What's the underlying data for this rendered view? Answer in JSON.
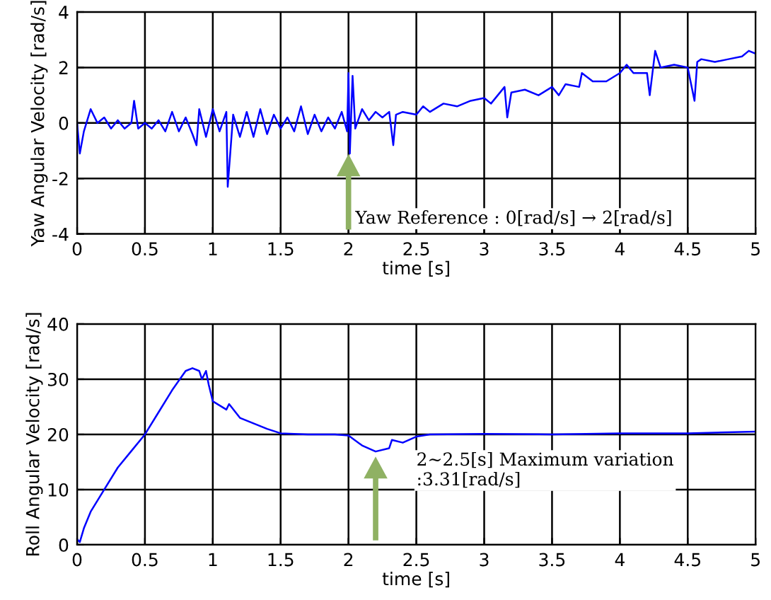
{
  "chart_data": [
    {
      "type": "line",
      "xlabel": "time [s]",
      "ylabel": "Yaw Angular Velocity [rad/s]",
      "xlim": [
        0,
        5
      ],
      "ylim": [
        -4,
        4
      ],
      "xticks": [
        0,
        0.5,
        1,
        1.5,
        2,
        2.5,
        3,
        3.5,
        4,
        4.5,
        5
      ],
      "yticks": [
        -4,
        -2,
        0,
        2,
        4
      ],
      "grid": true,
      "annotations": [
        "Yaw Reference : 0[rad/s] → 2[rad/s]"
      ],
      "series": [
        {
          "color": "#0000ff",
          "x": [
            0,
            0.02,
            0.05,
            0.1,
            0.15,
            0.2,
            0.25,
            0.3,
            0.35,
            0.4,
            0.42,
            0.45,
            0.5,
            0.55,
            0.6,
            0.65,
            0.7,
            0.75,
            0.8,
            0.85,
            0.88,
            0.9,
            0.95,
            1.0,
            1.05,
            1.1,
            1.11,
            1.15,
            1.2,
            1.25,
            1.3,
            1.35,
            1.4,
            1.45,
            1.5,
            1.55,
            1.6,
            1.65,
            1.7,
            1.75,
            1.8,
            1.85,
            1.9,
            1.95,
            1.99,
            2.0,
            2.01,
            2.03,
            2.05,
            2.1,
            2.15,
            2.2,
            2.25,
            2.3,
            2.33,
            2.35,
            2.4,
            2.5,
            2.55,
            2.6,
            2.7,
            2.8,
            2.9,
            3.0,
            3.05,
            3.1,
            3.15,
            3.17,
            3.2,
            3.3,
            3.4,
            3.5,
            3.55,
            3.6,
            3.7,
            3.72,
            3.8,
            3.9,
            4.0,
            4.05,
            4.1,
            4.2,
            4.22,
            4.26,
            4.3,
            4.4,
            4.5,
            4.55,
            4.57,
            4.6,
            4.7,
            4.8,
            4.9,
            4.95,
            5.0
          ],
          "values": [
            0,
            -1.1,
            -0.3,
            0.5,
            0,
            0.2,
            -0.2,
            0.1,
            -0.2,
            0,
            0.8,
            -0.2,
            0,
            -0.2,
            0.1,
            -0.3,
            0.4,
            -0.3,
            0.2,
            -0.4,
            -0.8,
            0.5,
            -0.5,
            0.5,
            -0.3,
            0.4,
            -2.3,
            0.3,
            -0.5,
            0.4,
            -0.5,
            0.5,
            -0.4,
            0.3,
            -0.2,
            0.2,
            -0.3,
            0.6,
            -0.4,
            0.3,
            -0.3,
            0.2,
            -0.2,
            0.4,
            -0.3,
            1.8,
            -1.1,
            1.7,
            -0.2,
            0.5,
            0.1,
            0.4,
            0.2,
            0.4,
            -0.8,
            0.3,
            0.4,
            0.3,
            0.6,
            0.4,
            0.7,
            0.6,
            0.8,
            0.9,
            0.7,
            1.0,
            1.3,
            0.2,
            1.1,
            1.2,
            1.0,
            1.3,
            1.0,
            1.4,
            1.3,
            1.8,
            1.5,
            1.5,
            1.8,
            2.1,
            1.8,
            1.8,
            1.0,
            2.6,
            2.0,
            2.1,
            2.0,
            0.8,
            2.2,
            2.3,
            2.2,
            2.3,
            2.4,
            2.6,
            2.5
          ]
        }
      ]
    },
    {
      "type": "line",
      "xlabel": "time [s]",
      "ylabel": "Roll Angular Velocity [rad/s]",
      "xlim": [
        0,
        5
      ],
      "ylim": [
        0,
        40
      ],
      "xticks": [
        0,
        0.5,
        1,
        1.5,
        2,
        2.5,
        3,
        3.5,
        4,
        4.5,
        5
      ],
      "yticks": [
        0,
        10,
        20,
        30,
        40
      ],
      "grid": true,
      "annotations": [
        "2~2.5[s] Maximum variation\n:3.31[rad/s]"
      ],
      "series": [
        {
          "color": "#0000ff",
          "x": [
            0,
            0.02,
            0.05,
            0.1,
            0.2,
            0.3,
            0.4,
            0.5,
            0.6,
            0.7,
            0.8,
            0.85,
            0.9,
            0.92,
            0.95,
            0.97,
            1.0,
            1.1,
            1.12,
            1.2,
            1.3,
            1.4,
            1.5,
            1.7,
            1.9,
            2.0,
            2.1,
            2.2,
            2.3,
            2.32,
            2.4,
            2.5,
            2.6,
            3.0,
            3.5,
            4.0,
            4.5,
            5.0
          ],
          "values": [
            1,
            0.5,
            3,
            6,
            10,
            14,
            17,
            20,
            24,
            28,
            31.5,
            32,
            31.5,
            30,
            31.5,
            29,
            26,
            24.5,
            25.5,
            23,
            22,
            21,
            20.2,
            20,
            20,
            19.8,
            18,
            16.9,
            17.5,
            19,
            18.5,
            19.6,
            20,
            20.1,
            20,
            20.2,
            20.2,
            20.5
          ]
        }
      ]
    }
  ]
}
